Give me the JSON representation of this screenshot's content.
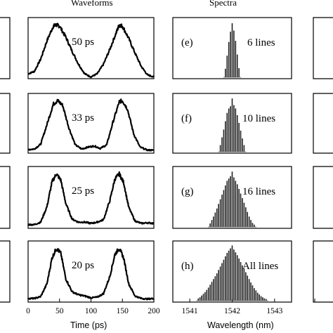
{
  "figure": {
    "header_waveforms": "Waveforms",
    "header_spectra": "Spectra",
    "xlabel_time": "Time (ps)",
    "xlabel_wavelength": "Wavelength (nm)"
  },
  "chart_data": [
    {
      "type": "line",
      "column": "waveforms",
      "panel_label": "50 ps",
      "xlabel": "",
      "ylabel": "",
      "xlim": [
        0,
        200
      ],
      "series": [
        {
          "x": [
            0,
            10,
            20,
            30,
            40,
            45,
            50,
            60,
            70,
            80,
            90,
            100,
            110,
            120,
            130,
            140,
            145,
            150,
            160,
            170,
            180,
            190,
            200
          ],
          "y": [
            0.08,
            0.12,
            0.32,
            0.62,
            0.86,
            0.88,
            0.86,
            0.68,
            0.45,
            0.24,
            0.08,
            0.03,
            0.08,
            0.24,
            0.48,
            0.75,
            0.88,
            0.86,
            0.66,
            0.42,
            0.2,
            0.06,
            0.03
          ]
        }
      ]
    },
    {
      "type": "line",
      "column": "waveforms",
      "panel_label": "33 ps",
      "xlabel": "",
      "ylabel": "",
      "xlim": [
        0,
        200
      ],
      "series": [
        {
          "x": [
            0,
            10,
            20,
            30,
            40,
            47,
            55,
            65,
            75,
            85,
            95,
            105,
            115,
            125,
            135,
            145,
            150,
            158,
            168,
            178,
            190,
            200
          ],
          "y": [
            0.06,
            0.07,
            0.15,
            0.48,
            0.82,
            0.88,
            0.8,
            0.42,
            0.14,
            0.07,
            0.1,
            0.12,
            0.08,
            0.14,
            0.52,
            0.86,
            0.88,
            0.74,
            0.32,
            0.1,
            0.05,
            0.05
          ]
        }
      ]
    },
    {
      "type": "line",
      "column": "waveforms",
      "panel_label": "25 ps",
      "xlabel": "",
      "ylabel": "",
      "xlim": [
        0,
        200
      ],
      "series": [
        {
          "x": [
            0,
            10,
            20,
            30,
            38,
            45,
            52,
            60,
            70,
            80,
            90,
            100,
            110,
            120,
            130,
            138,
            145,
            152,
            160,
            170,
            180,
            190,
            200
          ],
          "y": [
            0.06,
            0.06,
            0.1,
            0.35,
            0.75,
            0.88,
            0.78,
            0.4,
            0.15,
            0.1,
            0.1,
            0.08,
            0.1,
            0.14,
            0.45,
            0.8,
            0.88,
            0.74,
            0.34,
            0.12,
            0.08,
            0.09,
            0.08
          ]
        }
      ]
    },
    {
      "type": "line",
      "column": "waveforms",
      "panel_label": "20 ps",
      "xlabel": "",
      "ylabel": "",
      "xlim": [
        0,
        200
      ],
      "xticks": [
        0,
        50,
        100,
        150,
        200
      ],
      "series": [
        {
          "x": [
            0,
            10,
            20,
            30,
            38,
            45,
            52,
            60,
            70,
            80,
            90,
            100,
            110,
            120,
            130,
            138,
            145,
            152,
            160,
            170,
            180,
            190,
            200
          ],
          "y": [
            0.06,
            0.06,
            0.09,
            0.3,
            0.72,
            0.88,
            0.8,
            0.38,
            0.17,
            0.12,
            0.1,
            0.07,
            0.08,
            0.14,
            0.42,
            0.78,
            0.88,
            0.72,
            0.3,
            0.1,
            0.06,
            0.05,
            0.06
          ]
        }
      ]
    },
    {
      "type": "bar",
      "column": "spectra",
      "panel_letter": "(e)",
      "panel_label": "6 lines",
      "xlabel": "",
      "ylabel": "",
      "xlim": [
        1540.6,
        1543.4
      ],
      "x": [
        1541.84,
        1541.88,
        1541.92,
        1541.96,
        1542.0,
        1542.04,
        1542.08,
        1542.12,
        1542.16
      ],
      "values": [
        0.15,
        0.38,
        0.62,
        0.8,
        0.95,
        0.82,
        0.64,
        0.4,
        0.16
      ]
    },
    {
      "type": "bar",
      "column": "spectra",
      "panel_letter": "(f)",
      "panel_label": "10 lines",
      "xlabel": "",
      "ylabel": "",
      "xlim": [
        1540.6,
        1543.4
      ],
      "x": [
        1541.72,
        1541.76,
        1541.8,
        1541.84,
        1541.88,
        1541.92,
        1541.96,
        1542.0,
        1542.04,
        1542.08,
        1542.12,
        1542.16,
        1542.2,
        1542.24,
        1542.28
      ],
      "values": [
        0.12,
        0.26,
        0.4,
        0.55,
        0.7,
        0.78,
        0.82,
        0.96,
        0.84,
        0.78,
        0.66,
        0.52,
        0.38,
        0.24,
        0.12
      ]
    },
    {
      "type": "bar",
      "column": "spectra",
      "panel_letter": "(g)",
      "panel_label": "16 lines",
      "xlabel": "",
      "ylabel": "",
      "xlim": [
        1540.6,
        1543.4
      ],
      "x": [
        1541.48,
        1541.52,
        1541.56,
        1541.6,
        1541.64,
        1541.68,
        1541.72,
        1541.76,
        1541.8,
        1541.84,
        1541.88,
        1541.92,
        1541.96,
        1542.0,
        1542.04,
        1542.08,
        1542.12,
        1542.16,
        1542.2,
        1542.24,
        1542.28,
        1542.32,
        1542.36,
        1542.4,
        1542.44,
        1542.48,
        1542.52
      ],
      "values": [
        0.06,
        0.12,
        0.18,
        0.25,
        0.32,
        0.4,
        0.48,
        0.56,
        0.64,
        0.72,
        0.8,
        0.84,
        0.88,
        0.96,
        0.86,
        0.8,
        0.74,
        0.66,
        0.58,
        0.5,
        0.42,
        0.34,
        0.26,
        0.18,
        0.12,
        0.07,
        0.04
      ]
    },
    {
      "type": "bar",
      "column": "spectra",
      "panel_letter": "(h)",
      "panel_label": "All lines",
      "xlabel": "",
      "ylabel": "",
      "xlim": [
        1540.6,
        1543.4
      ],
      "xticks": [
        1541,
        1542,
        1543
      ],
      "x": [
        1541.2,
        1541.24,
        1541.28,
        1541.32,
        1541.36,
        1541.4,
        1541.44,
        1541.48,
        1541.52,
        1541.56,
        1541.6,
        1541.64,
        1541.68,
        1541.72,
        1541.76,
        1541.8,
        1541.84,
        1541.88,
        1541.92,
        1541.96,
        1542.0,
        1542.04,
        1542.08,
        1542.12,
        1542.16,
        1542.2,
        1542.24,
        1542.28,
        1542.32,
        1542.36,
        1542.4,
        1542.44,
        1542.48,
        1542.52,
        1542.56,
        1542.6,
        1542.64,
        1542.68,
        1542.72,
        1542.76,
        1542.8
      ],
      "values": [
        0.04,
        0.06,
        0.09,
        0.12,
        0.15,
        0.19,
        0.23,
        0.28,
        0.33,
        0.38,
        0.43,
        0.48,
        0.54,
        0.6,
        0.66,
        0.72,
        0.78,
        0.84,
        0.88,
        0.92,
        0.97,
        0.9,
        0.85,
        0.8,
        0.74,
        0.68,
        0.62,
        0.56,
        0.5,
        0.44,
        0.38,
        0.32,
        0.27,
        0.22,
        0.18,
        0.14,
        0.11,
        0.08,
        0.06,
        0.04,
        0.03
      ]
    }
  ]
}
